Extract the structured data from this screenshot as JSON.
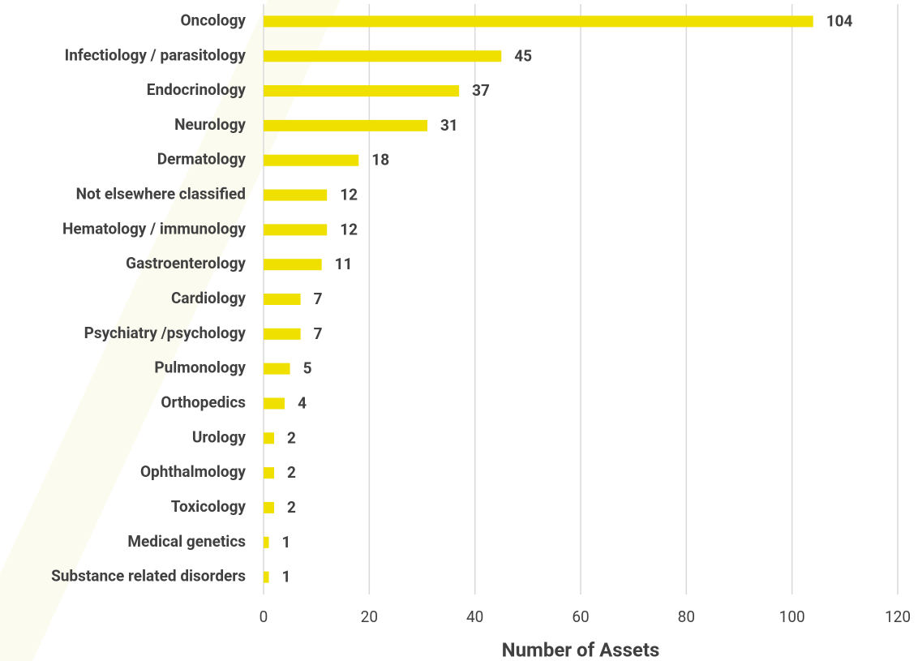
{
  "chart_data": {
    "type": "bar",
    "orientation": "horizontal",
    "xlabel": "Number of Assets",
    "categories": [
      "Oncology",
      "Infectiology / parasitology",
      "Endocrinology",
      "Neurology",
      "Dermatology",
      "Not elsewhere classified",
      "Hematology / immunology",
      "Gastroenterology",
      "Cardiology",
      "Psychiatry /psychology",
      "Pulmonology",
      "Orthopedics",
      "Urology",
      "Ophthalmology",
      "Toxicology",
      "Medical genetics",
      "Substance related disorders"
    ],
    "values": [
      104,
      45,
      37,
      31,
      18,
      12,
      12,
      11,
      7,
      7,
      5,
      4,
      2,
      2,
      2,
      1,
      1
    ],
    "color": "#efe000",
    "xlim": [
      0,
      120
    ],
    "xticks": [
      0,
      20,
      40,
      60,
      80,
      100,
      120
    ],
    "grid": true
  }
}
